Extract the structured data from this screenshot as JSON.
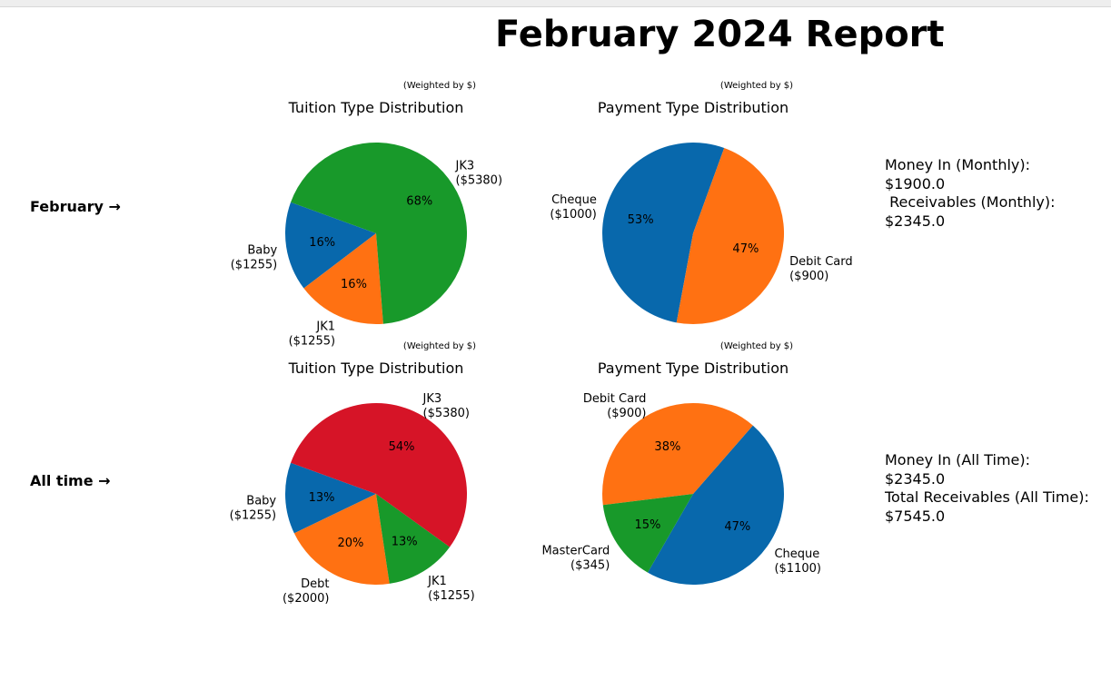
{
  "report": {
    "title": "February 2024 Report"
  },
  "rows": [
    {
      "label": "February →",
      "stats": [
        "Money In (Monthly):",
        "$1900.0",
        " Receivables (Monthly):",
        "$2345.0"
      ]
    },
    {
      "label": "All time →",
      "stats": [
        "Money In (All Time):",
        "$2345.0",
        "Total Receivables (All Time):",
        "$7545.0"
      ]
    }
  ],
  "colors": {
    "blue": "#0868ac",
    "orange": "#ff7112",
    "green": "#18992a",
    "red": "#d61427"
  },
  "chart_data": [
    {
      "type": "pie",
      "title": "Tuition Type Distribution",
      "subtitle": "(Weighted by $)",
      "categories": [
        "Baby",
        "JK1",
        "JK3"
      ],
      "values": [
        1255,
        1255,
        5380
      ],
      "value_labels": [
        "($1255)",
        "($1255)",
        "($5380)"
      ],
      "percent_labels": [
        "16%",
        "16%",
        "68%"
      ],
      "colors": [
        "#0868ac",
        "#ff7112",
        "#18992a"
      ],
      "start_angle": 160
    },
    {
      "type": "pie",
      "title": "Payment Type Distribution",
      "subtitle": "(Weighted by $)",
      "categories": [
        "Cheque",
        "Debit Card"
      ],
      "values": [
        1000,
        900
      ],
      "value_labels": [
        "($1000)",
        "($900)"
      ],
      "percent_labels": [
        "53%",
        "47%"
      ],
      "colors": [
        "#0868ac",
        "#ff7112"
      ],
      "start_angle": 70
    },
    {
      "type": "pie",
      "title": "Tuition Type Distribution",
      "subtitle": "(Weighted by $)",
      "categories": [
        "Baby",
        "Debt",
        "JK1",
        "JK3"
      ],
      "values": [
        1255,
        2000,
        1255,
        5380
      ],
      "value_labels": [
        "($1255)",
        "($2000)",
        "($1255)",
        "($5380)"
      ],
      "percent_labels": [
        "13%",
        "20%",
        "13%",
        "54%"
      ],
      "colors": [
        "#0868ac",
        "#ff7112",
        "#18992a",
        "#d61427"
      ],
      "start_angle": 160
    },
    {
      "type": "pie",
      "title": "Payment Type Distribution",
      "subtitle": "(Weighted by $)",
      "categories": [
        "Cheque",
        "Debit Card",
        "MasterCard"
      ],
      "values": [
        1100,
        900,
        345
      ],
      "value_labels": [
        "($1100)",
        "($900)",
        "($345)"
      ],
      "percent_labels": [
        "47%",
        "38%",
        "15%"
      ],
      "colors": [
        "#0868ac",
        "#ff7112",
        "#18992a"
      ],
      "start_angle": 240
    }
  ]
}
